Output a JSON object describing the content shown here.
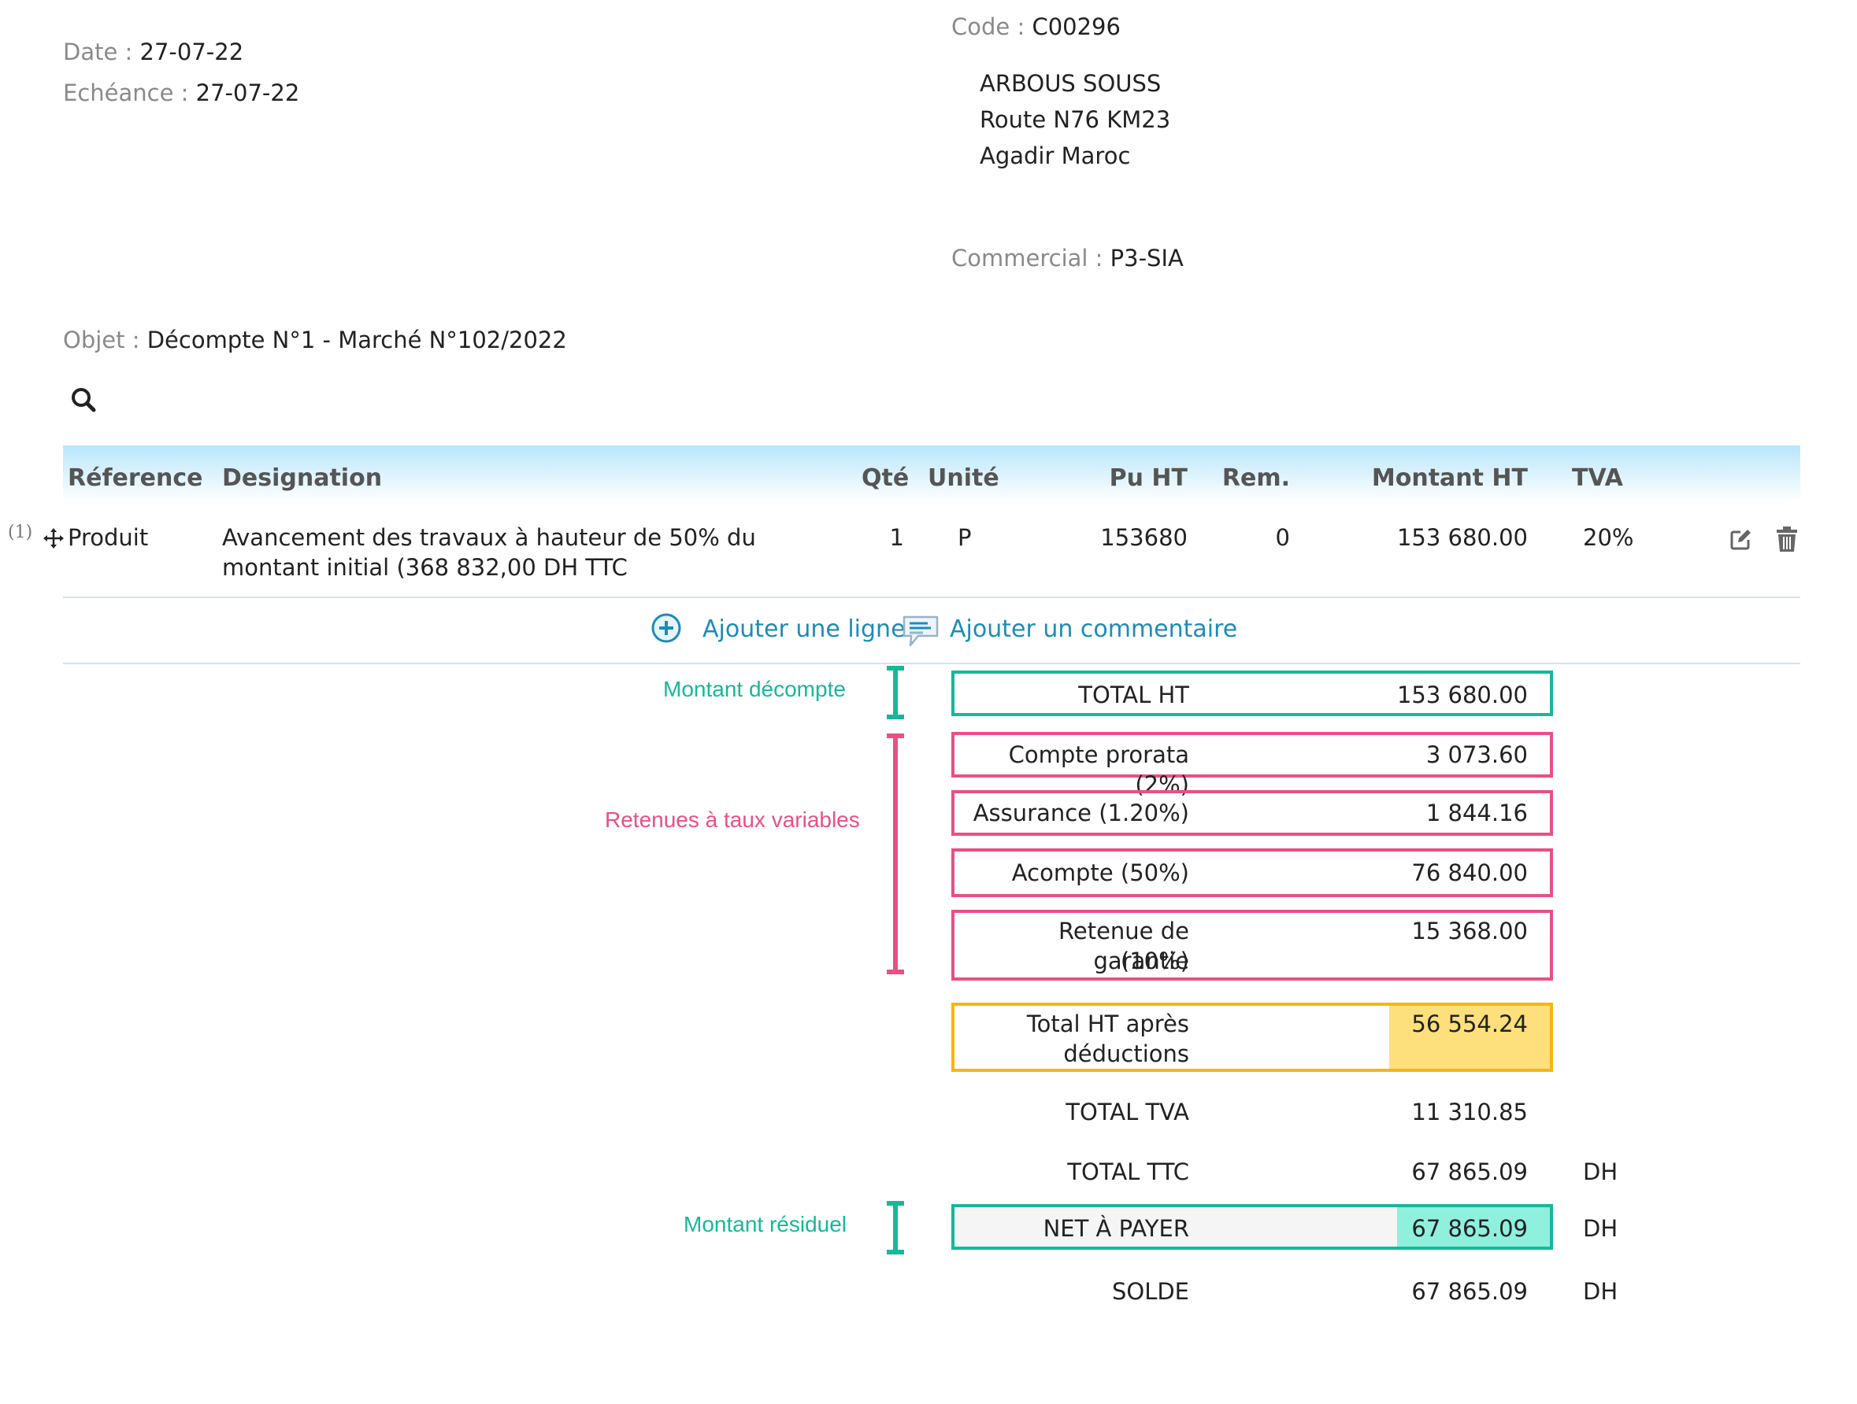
{
  "header": {
    "date_label": "Date :",
    "date_value": "27-07-22",
    "echeance_label": "Echéance :",
    "echeance_value": "27-07-22",
    "code_label": "Code :",
    "code_value": "C00296",
    "client_name": "ARBOUS SOUSS",
    "client_address1": "Route N76 KM23",
    "client_address2": "Agadir Maroc",
    "commercial_label": "Commercial :",
    "commercial_value": "P3-SIA",
    "objet_label": "Objet :",
    "objet_value": "Décompte N°1 - Marché N°102/2022"
  },
  "table": {
    "columns": {
      "reference": "Réference",
      "designation": "Designation",
      "qte": "Qté",
      "unite": "Unité",
      "pu_ht": "Pu HT",
      "rem": "Rem.",
      "montant_ht": "Montant HT",
      "tva": "TVA"
    },
    "rows": [
      {
        "index": "(1)",
        "reference": "Produit",
        "designation_line1": "Avancement des travaux à hauteur de 50% du",
        "designation_line2": "montant initial (368 832,00 DH TTC",
        "qte": "1",
        "unite": "P",
        "pu_ht": "153680",
        "rem": "0",
        "montant_ht": "153 680.00",
        "tva": "20%"
      }
    ]
  },
  "actions": {
    "add_line": "Ajouter une ligne",
    "add_comment": "Ajouter un commentaire"
  },
  "totals": {
    "total_ht_label": "TOTAL HT",
    "total_ht_value": "153 680.00",
    "prorata_label": "Compte prorata (2%)",
    "prorata_value": "3 073.60",
    "assurance_label": "Assurance (1.20%)",
    "assurance_value": "1 844.16",
    "acompte_label": "Acompte (50%)",
    "acompte_value": "76 840.00",
    "garantie_label_line1": "Retenue de garantie",
    "garantie_label_line2": "(10%)",
    "garantie_value": "15 368.00",
    "after_ded_label_line1": "Total HT après",
    "after_ded_label_line2": "déductions",
    "after_ded_value": "56 554.24",
    "total_tva_label": "TOTAL TVA",
    "total_tva_value": "11 310.85",
    "total_ttc_label": "TOTAL TTC",
    "total_ttc_value": "67 865.09",
    "net_label": "NET À PAYER",
    "net_value": "67 865.09",
    "solde_label": "SOLDE",
    "solde_value": "67 865.09",
    "currency": "DH"
  },
  "annotations": {
    "montant_decompte": "Montant décompte",
    "retenues": "Retenues à taux variables",
    "montant_residuel": "Montant résiduel"
  },
  "colors": {
    "teal": "#16b89a",
    "pink": "#ea4f86",
    "yellow": "#f7b512",
    "yellow_fill": "#fddf7b",
    "teal_fill": "#8ff0dd",
    "link": "#1c8cb8"
  },
  "icons": [
    "search-icon",
    "move-icon",
    "edit-icon",
    "trash-icon",
    "add-circle-icon",
    "comment-icon"
  ]
}
